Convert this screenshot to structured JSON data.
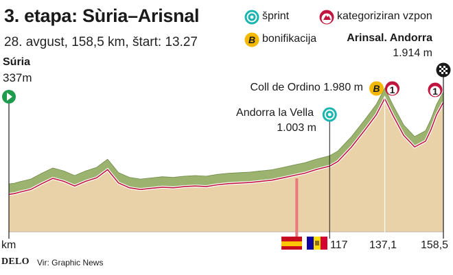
{
  "title": "3. etapa: Sùria–Arisnal",
  "subtitle": "28. avgust, 158,5 km, štart: 13.27",
  "legend": {
    "sprint": "šprint",
    "climb": "kategoriziran vzpon",
    "bonus": "bonifikacija"
  },
  "start": {
    "name": "Súria",
    "elevation": "337m"
  },
  "finish": {
    "name": "Arinsal. Andorra",
    "elevation": "1.914 m"
  },
  "annotations": {
    "ordino": "Coll de Ordino 1.980 m",
    "vella_name": "Andorra la Vella",
    "vella_elev": "1.003 m"
  },
  "footer": {
    "logo": "DELO",
    "source": "Vir: Graphic News"
  },
  "colors": {
    "profile_fill": "#e9d1a8",
    "profile_top": "#9bb36f",
    "profile_line": "#c0153e",
    "spain_marker": "#e8797d",
    "sprint": "#1bb5b0",
    "climb": "#c0153e",
    "bonus": "#f3b800",
    "start": "#1f9b4e"
  },
  "chart_data": {
    "type": "area",
    "x_unit": "km",
    "y_unit": "m",
    "distance_km": [
      0,
      2,
      4,
      8,
      12,
      16,
      20,
      24,
      28,
      32,
      36,
      40,
      44,
      48,
      52,
      56,
      60,
      64,
      68,
      72,
      76,
      80,
      84,
      88,
      92,
      96,
      100,
      104,
      108,
      112,
      117,
      120,
      125,
      130,
      134,
      137.1,
      140,
      144,
      148,
      152,
      154,
      156,
      158.5
    ],
    "elevation_m": [
      337,
      350,
      375,
      420,
      520,
      610,
      560,
      480,
      560,
      620,
      760,
      530,
      450,
      420,
      440,
      460,
      450,
      470,
      480,
      470,
      500,
      520,
      530,
      540,
      560,
      580,
      620,
      660,
      700,
      760,
      820,
      900,
      1150,
      1450,
      1700,
      1980,
      1700,
      1350,
      1150,
      1250,
      1450,
      1700,
      1914
    ],
    "x_tick_labels": [
      "km",
      "117",
      "137,1",
      "158,5"
    ],
    "x_tick_values": [
      0,
      117,
      137.1,
      158.5
    ],
    "markers": [
      {
        "km": 0,
        "type": "start"
      },
      {
        "km": 117,
        "type": "sprint"
      },
      {
        "km": 105,
        "type": "border"
      },
      {
        "km": 137.1,
        "type": "bonus"
      },
      {
        "km": 137.1,
        "type": "climb",
        "category": "1"
      },
      {
        "km": 158.5,
        "type": "climb",
        "category": "1"
      },
      {
        "km": 158.5,
        "type": "finish"
      }
    ]
  }
}
